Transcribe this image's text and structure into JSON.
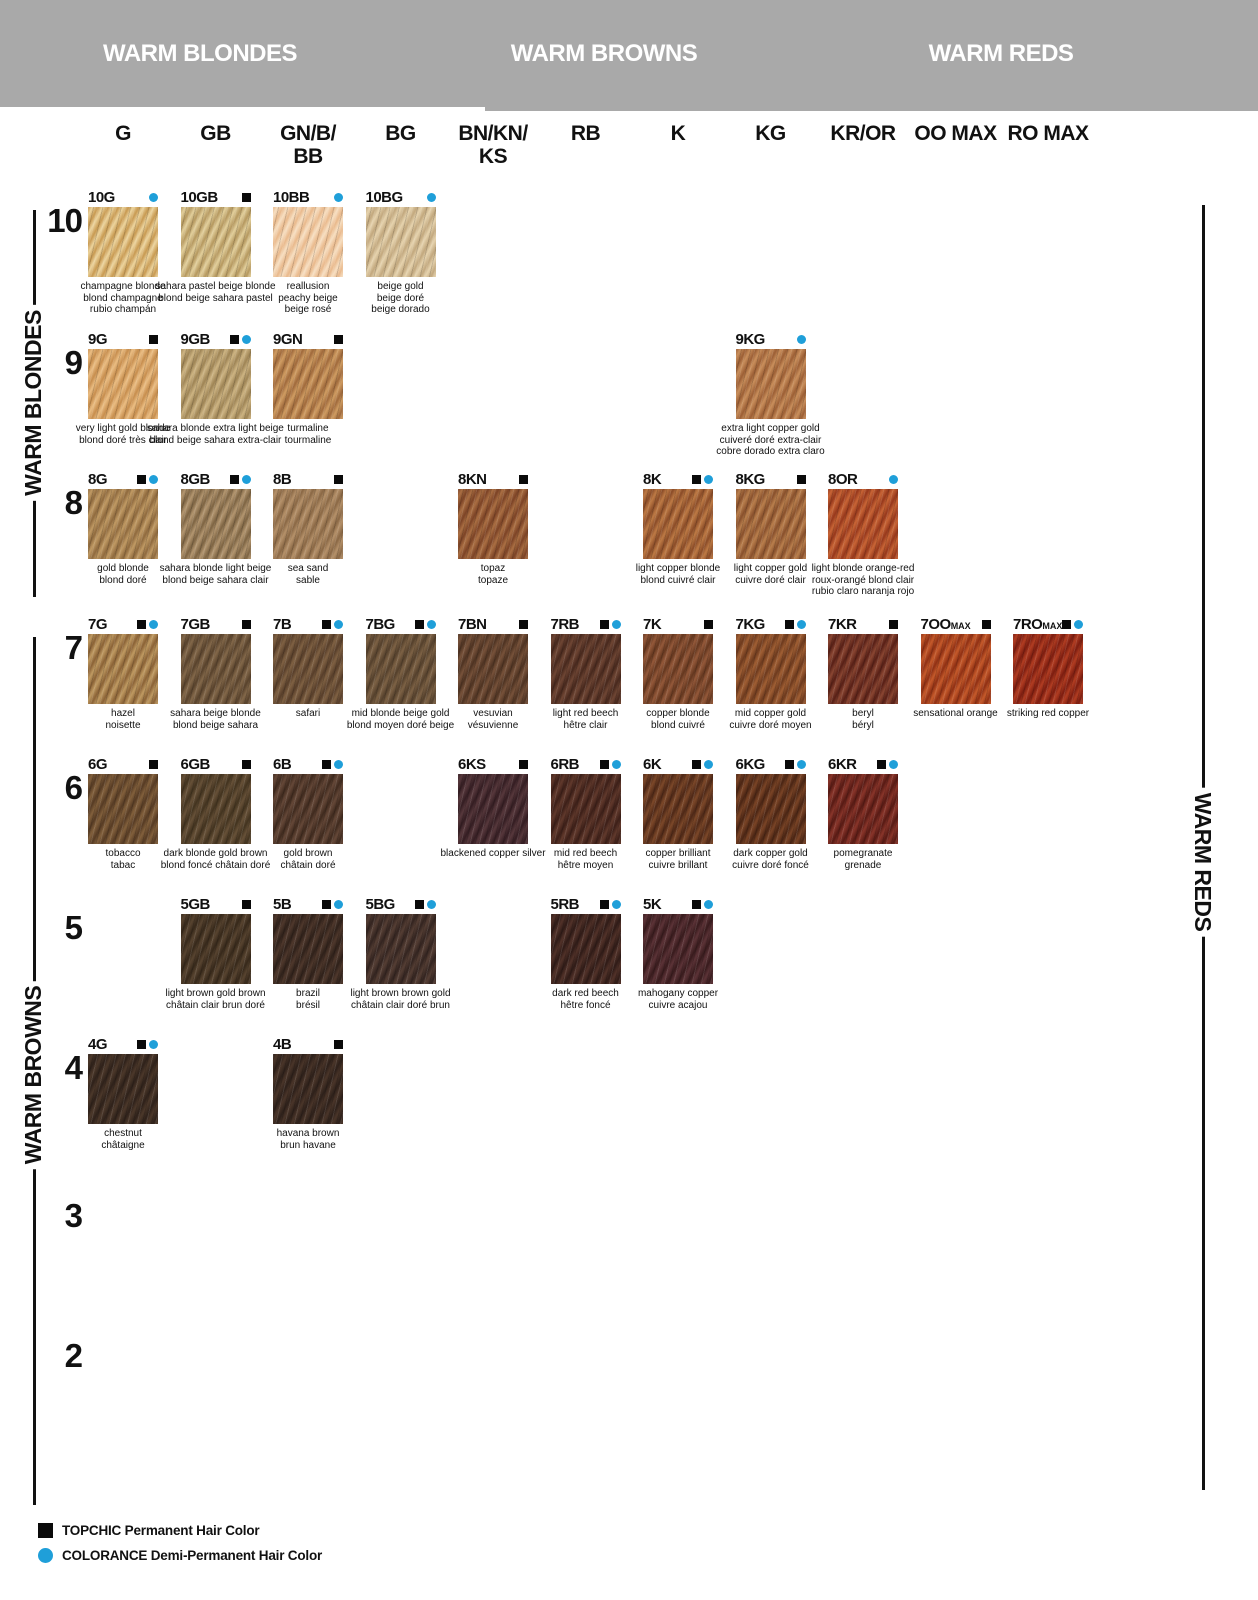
{
  "banner": {
    "sections": [
      "WARM BLONDES",
      "WARM BROWNS",
      "WARM REDS"
    ]
  },
  "columns": [
    [
      "G"
    ],
    [
      "GB"
    ],
    [
      "GN/B/",
      "BB"
    ],
    [
      "BG"
    ],
    [
      "BN/KN/",
      "KS"
    ],
    [
      "RB"
    ],
    [
      "K"
    ],
    [
      "KG"
    ],
    [
      "KR/OR"
    ],
    [
      "OO MAX"
    ],
    [
      "RO MAX"
    ]
  ],
  "side": {
    "left_top": "WARM BLONDES",
    "left_bottom": "WARM BROWNS",
    "right": "WARM REDS"
  },
  "legend": {
    "items": [
      {
        "marker": "topchic-square",
        "label": "TOPCHIC Permanent Hair Color"
      },
      {
        "marker": "colorance-dot",
        "label": "COLORANCE Demi-Permanent Hair Color"
      }
    ]
  },
  "colors": {
    "banner_bg": "#a9a9a9",
    "topchic_black": "#0a0a0a",
    "colorance_blue": "#1f9fd9"
  },
  "rows": [
    {
      "level": "10",
      "cells": [
        {
          "code": "10G",
          "col": 0,
          "topchic": false,
          "colorance": true,
          "names": [
            "champagne blonde",
            "blond champagne",
            "rubio champán"
          ],
          "c1": "#c89a52",
          "c2": "#ecd49e"
        },
        {
          "code": "10GB",
          "col": 1,
          "topchic": true,
          "colorance": false,
          "names": [
            "sahara pastel beige blonde",
            "blond beige sahara pastel"
          ],
          "c1": "#b5985f",
          "c2": "#e2cf9c"
        },
        {
          "code": "10BB",
          "col": 2,
          "topchic": false,
          "colorance": true,
          "names": [
            "reallusion",
            "peachy beige",
            "beige rosé"
          ],
          "c1": "#e9b98c",
          "c2": "#f7dfc2"
        },
        {
          "code": "10BG",
          "col": 3,
          "topchic": false,
          "colorance": true,
          "names": [
            "beige gold",
            "beige doré",
            "beige dorado"
          ],
          "c1": "#c2a87e",
          "c2": "#e6d3ae"
        }
      ]
    },
    {
      "level": "9",
      "cells": [
        {
          "code": "9G",
          "col": 0,
          "topchic": true,
          "colorance": false,
          "names": [
            "very light gold blonde",
            "blond doré très clair"
          ],
          "c1": "#c78e4e",
          "c2": "#eabd83"
        },
        {
          "code": "9GB",
          "col": 1,
          "topchic": true,
          "colorance": true,
          "names": [
            "sahara blonde extra light beige",
            "blond beige sahara extra-clair"
          ],
          "c1": "#9e8455",
          "c2": "#cdb483"
        },
        {
          "code": "9GN",
          "col": 2,
          "topchic": true,
          "colorance": false,
          "names": [
            "turmaline",
            "tourmaline"
          ],
          "c1": "#a06a3c",
          "c2": "#cf9c62"
        },
        {
          "code": "9KG",
          "col": 7,
          "topchic": false,
          "colorance": true,
          "names": [
            "extra light copper gold",
            "cuiveré doré extra-clair",
            "cobre dorado extra claro"
          ],
          "c1": "#9c5f35",
          "c2": "#c98f5c"
        }
      ]
    },
    {
      "level": "8",
      "cells": [
        {
          "code": "8G",
          "col": 0,
          "topchic": true,
          "colorance": true,
          "names": [
            "gold blonde",
            "blond doré"
          ],
          "c1": "#8f6a3e",
          "c2": "#c09a64"
        },
        {
          "code": "8GB",
          "col": 1,
          "topchic": true,
          "colorance": true,
          "names": [
            "sahara blonde light beige",
            "blond beige sahara clair"
          ],
          "c1": "#7d6443",
          "c2": "#b39670"
        },
        {
          "code": "8B",
          "col": 2,
          "topchic": true,
          "colorance": false,
          "names": [
            "sea sand",
            "sable"
          ],
          "c1": "#8a6845",
          "c2": "#b5916a"
        },
        {
          "code": "8KN",
          "col": 4,
          "topchic": true,
          "colorance": false,
          "names": [
            "topaz",
            "topaze"
          ],
          "c1": "#7c4326",
          "c2": "#aa6f43"
        },
        {
          "code": "8K",
          "col": 6,
          "topchic": true,
          "colorance": true,
          "names": [
            "light copper blonde",
            "blond cuivré clair"
          ],
          "c1": "#8a4c28",
          "c2": "#bd7a45"
        },
        {
          "code": "8KG",
          "col": 7,
          "topchic": true,
          "colorance": false,
          "names": [
            "light copper gold",
            "cuivre doré clair"
          ],
          "c1": "#88502c",
          "c2": "#b97f4d"
        },
        {
          "code": "8OR",
          "col": 8,
          "topchic": false,
          "colorance": true,
          "names": [
            "light blonde orange-red",
            "roux-orangé blond clair",
            "rubio claro naranja rojo"
          ],
          "c1": "#96381c",
          "c2": "#c86536"
        }
      ]
    },
    {
      "level": "7",
      "cells": [
        {
          "code": "7G",
          "col": 0,
          "topchic": true,
          "colorance": true,
          "names": [
            "hazel",
            "noisette"
          ],
          "c1": "#8a6236",
          "c2": "#bf9a62"
        },
        {
          "code": "7GB",
          "col": 1,
          "topchic": true,
          "colorance": false,
          "names": [
            "sahara beige blonde",
            "blond beige sahara"
          ],
          "c1": "#58422c",
          "c2": "#83684a"
        },
        {
          "code": "7B",
          "col": 2,
          "topchic": true,
          "colorance": true,
          "names": [
            "safari"
          ],
          "c1": "#573e2a",
          "c2": "#7f6143"
        },
        {
          "code": "7BG",
          "col": 3,
          "topchic": true,
          "colorance": true,
          "names": [
            "mid blonde beige gold",
            "blond moyen doré beige"
          ],
          "c1": "#54402c",
          "c2": "#7d6245"
        },
        {
          "code": "7BN",
          "col": 4,
          "topchic": true,
          "colorance": false,
          "names": [
            "vesuvian",
            "vésuvienne"
          ],
          "c1": "#4e3322",
          "c2": "#77523a"
        },
        {
          "code": "7RB",
          "col": 5,
          "topchic": true,
          "colorance": true,
          "names": [
            "light red beech",
            "hêtre clair"
          ],
          "c1": "#47281d",
          "c2": "#6f4634"
        },
        {
          "code": "7K",
          "col": 6,
          "topchic": true,
          "colorance": false,
          "names": [
            "copper blonde",
            "blond cuivré"
          ],
          "c1": "#64371f",
          "c2": "#94593a"
        },
        {
          "code": "7KG",
          "col": 7,
          "topchic": true,
          "colorance": true,
          "names": [
            "mid copper gold",
            "cuivre doré moyen"
          ],
          "c1": "#6d3a1e",
          "c2": "#a05f34"
        },
        {
          "code": "7KR",
          "col": 8,
          "topchic": true,
          "colorance": false,
          "names": [
            "beryl",
            "béryl"
          ],
          "c1": "#571f16",
          "c2": "#8a4632"
        },
        {
          "code": "7OO",
          "suffix": "MAX",
          "col": 9,
          "topchic": true,
          "colorance": false,
          "names": [
            "sensational orange"
          ],
          "c1": "#8f3014",
          "c2": "#c55a2b"
        },
        {
          "code": "7RO",
          "suffix": "MAX",
          "col": 10,
          "topchic": true,
          "colorance": true,
          "names": [
            "striking red copper"
          ],
          "c1": "#7c1d10",
          "c2": "#b13d22"
        }
      ]
    },
    {
      "level": "6",
      "cells": [
        {
          "code": "6G",
          "col": 0,
          "topchic": true,
          "colorance": false,
          "names": [
            "tobacco",
            "tabac"
          ],
          "c1": "#563b24",
          "c2": "#82603c"
        },
        {
          "code": "6GB",
          "col": 1,
          "topchic": true,
          "colorance": false,
          "names": [
            "dark blonde gold brown",
            "blond foncé châtain doré"
          ],
          "c1": "#42331f",
          "c2": "#675138"
        },
        {
          "code": "6B",
          "col": 2,
          "topchic": true,
          "colorance": true,
          "names": [
            "gold brown",
            "châtain doré"
          ],
          "c1": "#3f2a1e",
          "c2": "#654838"
        },
        {
          "code": "6KS",
          "col": 4,
          "topchic": true,
          "colorance": false,
          "names": [
            "blackened copper silver"
          ],
          "c1": "#341d22",
          "c2": "#57383c"
        },
        {
          "code": "6RB",
          "col": 5,
          "topchic": true,
          "colorance": true,
          "names": [
            "mid red beech",
            "hêtre moyen"
          ],
          "c1": "#3c1f18",
          "c2": "#61392c"
        },
        {
          "code": "6K",
          "col": 6,
          "topchic": true,
          "colorance": true,
          "names": [
            "copper brilliant",
            "cuivre brillant"
          ],
          "c1": "#4e2817",
          "c2": "#7c4829"
        },
        {
          "code": "6KG",
          "col": 7,
          "topchic": true,
          "colorance": true,
          "names": [
            "dark copper gold",
            "cuivre doré foncé"
          ],
          "c1": "#4a2514",
          "c2": "#7a4426"
        },
        {
          "code": "6KR",
          "col": 8,
          "topchic": true,
          "colorance": true,
          "names": [
            "pomegranate",
            "grenade"
          ],
          "c1": "#571a14",
          "c2": "#89352a"
        }
      ]
    },
    {
      "level": "5",
      "cells": [
        {
          "code": "5GB",
          "col": 1,
          "topchic": true,
          "colorance": false,
          "names": [
            "light brown gold brown",
            "châtain clair brun doré"
          ],
          "c1": "#36281a",
          "c2": "#584430"
        },
        {
          "code": "5B",
          "col": 2,
          "topchic": true,
          "colorance": true,
          "names": [
            "brazil",
            "brésil"
          ],
          "c1": "#2f211a",
          "c2": "#4f382c"
        },
        {
          "code": "5BG",
          "col": 3,
          "topchic": true,
          "colorance": true,
          "names": [
            "light brown brown gold",
            "châtain clair doré brun"
          ],
          "c1": "#332420",
          "c2": "#553e34"
        },
        {
          "code": "5RB",
          "col": 5,
          "topchic": true,
          "colorance": true,
          "names": [
            "dark red beech",
            "hêtre foncé"
          ],
          "c1": "#2f1b17",
          "c2": "#523229"
        },
        {
          "code": "5K",
          "col": 6,
          "topchic": true,
          "colorance": true,
          "names": [
            "mahogany copper",
            "cuivre acajou"
          ],
          "c1": "#381b1d",
          "c2": "#5c3337"
        }
      ]
    },
    {
      "level": "4",
      "cells": [
        {
          "code": "4G",
          "col": 0,
          "topchic": true,
          "colorance": true,
          "names": [
            "chestnut",
            "châtaigne"
          ],
          "c1": "#2e211a",
          "c2": "#4c382a"
        },
        {
          "code": "4B",
          "col": 2,
          "topchic": true,
          "colorance": false,
          "names": [
            "havana brown",
            "brun havane"
          ],
          "c1": "#2d201a",
          "c2": "#4a3529"
        }
      ]
    },
    {
      "level": "3",
      "cells": []
    },
    {
      "level": "2",
      "cells": []
    }
  ]
}
